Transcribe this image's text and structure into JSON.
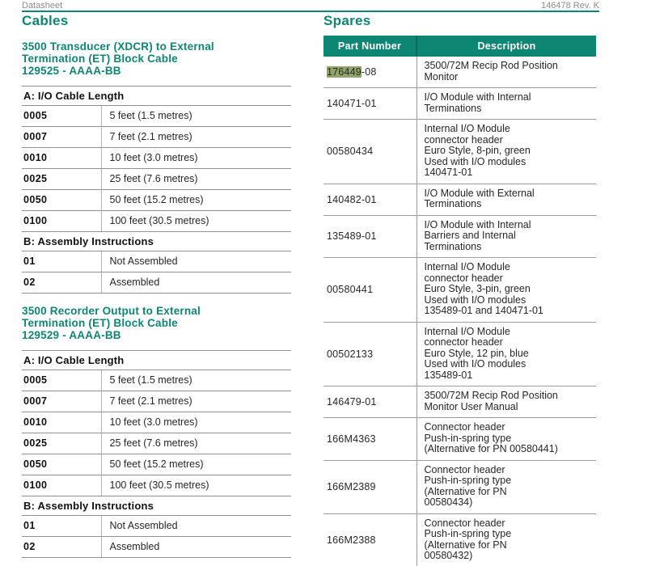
{
  "page": {
    "doc_type": "Datasheet",
    "doc_number": "146478 Rev. K"
  },
  "colors": {
    "teal": "#0d8673",
    "highlight": "#93a36d"
  },
  "cables": {
    "title": "Cables",
    "sections": [
      {
        "heading": "3500 Transducer (XDCR) to External\nTermination (ET) Block Cable\n129525 - AAAA-BB",
        "length_header": "A: I/O Cable Length",
        "length_rows": [
          {
            "code": "0005",
            "desc": "5 feet (1.5 metres)"
          },
          {
            "code": "0007",
            "desc": "7 feet (2.1 metres)"
          },
          {
            "code": "0010",
            "desc": "10 feet (3.0 metres)"
          },
          {
            "code": "0025",
            "desc": "25 feet (7.6 metres)"
          },
          {
            "code": "0050",
            "desc": "50 feet (15.2 metres)"
          },
          {
            "code": "0100",
            "desc": "100 feet (30.5 metres)"
          }
        ],
        "assembly_header": "B: Assembly Instructions",
        "assembly_rows": [
          {
            "code": "01",
            "desc": "Not Assembled"
          },
          {
            "code": "02",
            "desc": "Assembled"
          }
        ]
      },
      {
        "heading": "3500 Recorder Output to External\nTermination (ET) Block Cable\n129529 - AAAA-BB",
        "length_header": "A: I/O Cable Length",
        "length_rows": [
          {
            "code": "0005",
            "desc": "5 feet (1.5 metres)"
          },
          {
            "code": "0007",
            "desc": "7 feet (2.1 metres)"
          },
          {
            "code": "0010",
            "desc": "10 feet (3.0 metres)"
          },
          {
            "code": "0025",
            "desc": "25 feet (7.6 metres)"
          },
          {
            "code": "0050",
            "desc": "50 feet (15.2 metres)"
          },
          {
            "code": "0100",
            "desc": "100 feet (30.5 metres)"
          }
        ],
        "assembly_header": "B: Assembly Instructions",
        "assembly_rows": [
          {
            "code": "01",
            "desc": "Not Assembled"
          },
          {
            "code": "02",
            "desc": "Assembled"
          }
        ]
      }
    ]
  },
  "spares": {
    "title": "Spares",
    "col_headers": {
      "part_number": "Part Number",
      "description": "Description"
    },
    "rows": [
      {
        "pn_highlight": "176449",
        "pn_rest": "-08",
        "pn": "176449-08",
        "desc": "3500/72M Recip Rod Position\nMonitor"
      },
      {
        "pn": "140471-01",
        "desc": "I/O Module with Internal\nTerminations"
      },
      {
        "pn": "00580434",
        "desc": "Internal I/O Module\nconnector header\nEuro Style, 8-pin, green\nUsed with I/O modules\n140471-01"
      },
      {
        "pn": "140482-01",
        "desc": "I/O Module with External\nTerminations"
      },
      {
        "pn": "135489-01",
        "desc": "I/O Module with Internal\nBarriers and Internal\nTerminations"
      },
      {
        "pn": "00580441",
        "desc": "Internal I/O Module\nconnector header\nEuro Style, 3-pin, green\nUsed with I/O modules\n135489-01 and 140471-01"
      },
      {
        "pn": "00502133",
        "desc": "Internal I/O Module\nconnector header\nEuro Style, 12 pin, blue\nUsed with I/O modules\n135489-01"
      },
      {
        "pn": "146479-01",
        "desc": "3500/72M Recip Rod Position\nMonitor User Manual"
      },
      {
        "pn": "166M4363",
        "desc": "Connector header\nPush-in-spring type\n(Alternative for PN 00580441)"
      },
      {
        "pn": "166M2389",
        "desc": "Connector header\nPush-in-spring type\n(Alternative for PN\n00580434)"
      },
      {
        "pn": "166M2388",
        "desc": "Connector header\nPush-in-spring type\n(Alternative for PN\n00580432)"
      }
    ]
  }
}
